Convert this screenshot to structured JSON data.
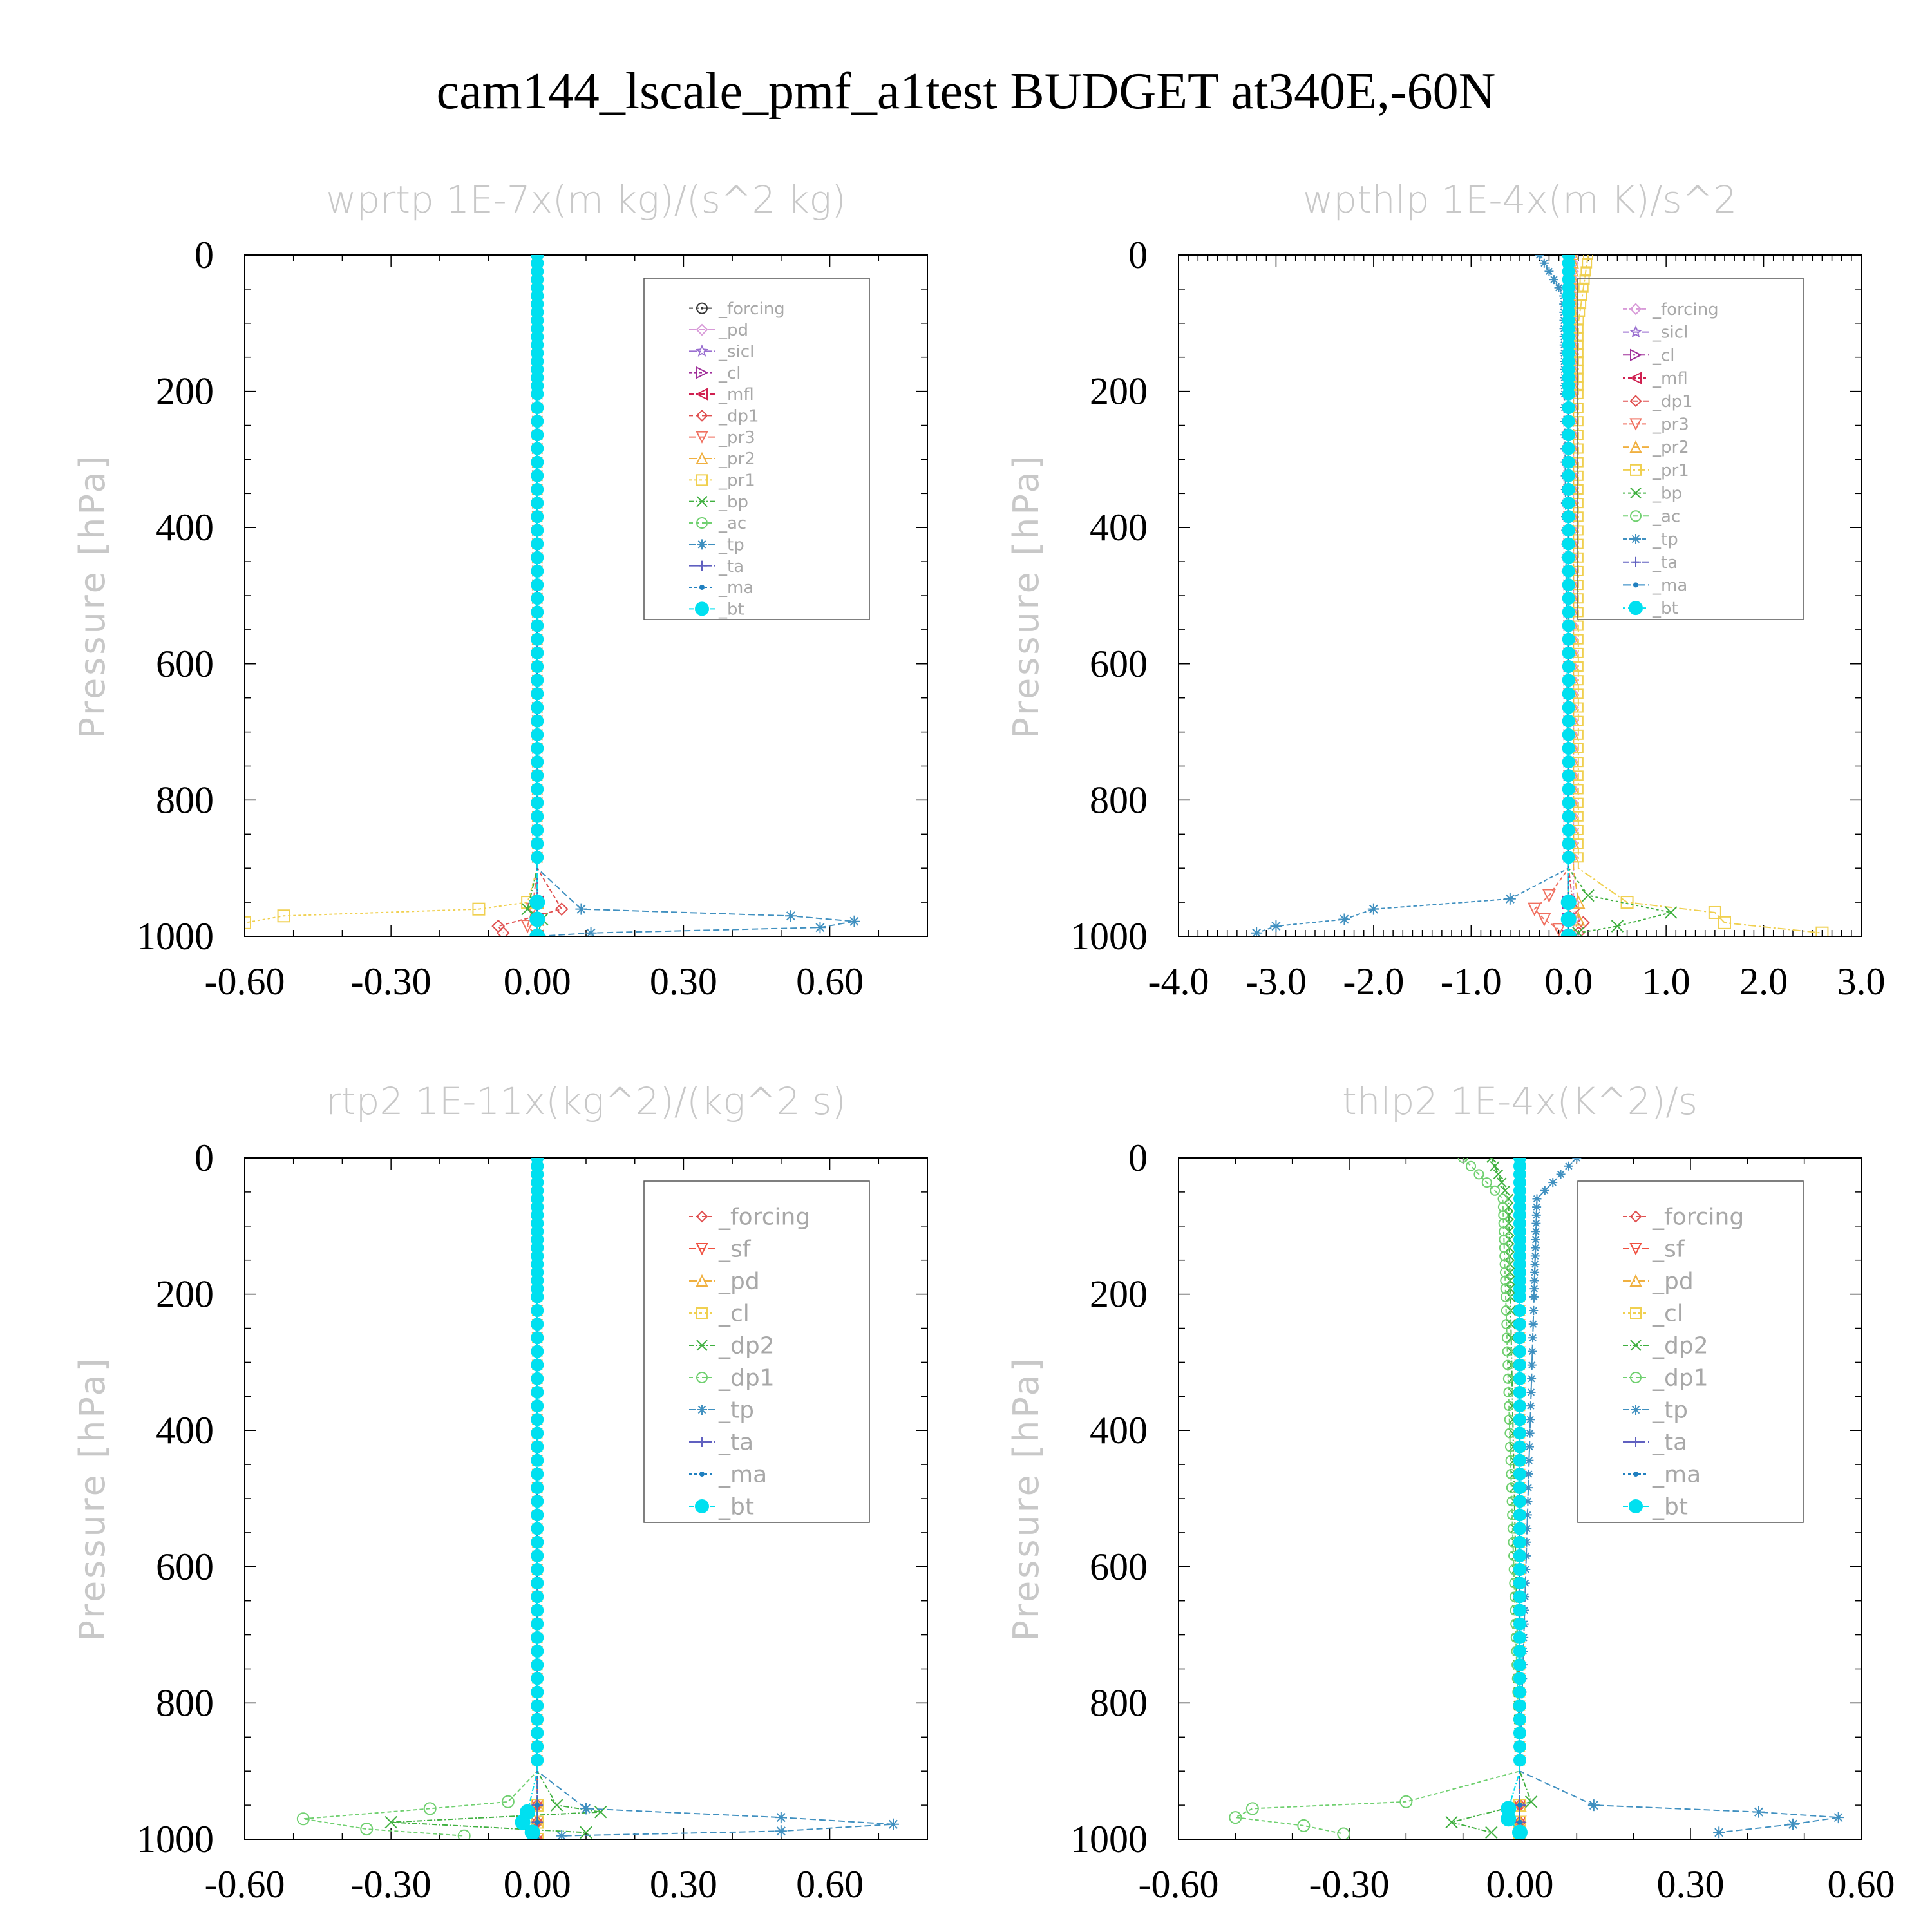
{
  "figure_title": "cam144_lscale_pmf_a1test  BUDGET at340E,-60N",
  "chart_data": [
    {
      "type": "line",
      "title": "wprtp   1E-7x(m kg)/(s^2 kg)",
      "ylabel": "Pressure [hPa]",
      "xlim": [
        -0.6,
        0.8
      ],
      "xticks": [
        "-0.60",
        "-0.30",
        "0.00",
        "0.30",
        "0.60"
      ],
      "xtick_values": [
        -0.6,
        -0.3,
        0.0,
        0.3,
        0.6
      ],
      "ylim": [
        1000,
        0
      ],
      "yticks": [
        "0",
        "200",
        "400",
        "600",
        "800",
        "1000"
      ],
      "legend_position": "top-right",
      "series": [
        {
          "name": "_forcing",
          "color": "#333333",
          "marker": "circle-dot",
          "x": [
            0,
            0,
            0,
            0,
            0
          ],
          "y": [
            0,
            900,
            950,
            975,
            1000
          ]
        },
        {
          "name": "_pd",
          "color": "#d89ad8",
          "marker": "diamond",
          "x": [
            0,
            0,
            0,
            0,
            0
          ],
          "y": [
            0,
            900,
            950,
            975,
            1000
          ]
        },
        {
          "name": "_sicl",
          "color": "#9a6fd0",
          "marker": "star",
          "x": [
            0,
            0,
            0,
            0,
            0
          ],
          "y": [
            0,
            900,
            950,
            975,
            1000
          ]
        },
        {
          "name": "_cl",
          "color": "#a0309a",
          "marker": "triangle-right",
          "x": [
            0,
            0,
            0,
            0,
            0
          ],
          "y": [
            0,
            900,
            950,
            975,
            1000
          ]
        },
        {
          "name": "_mfl",
          "color": "#d02050",
          "marker": "triangle-left",
          "x": [
            0,
            0,
            0,
            0,
            0
          ],
          "y": [
            0,
            900,
            950,
            975,
            1000
          ]
        },
        {
          "name": "_dp1",
          "color": "#e05050",
          "marker": "diamond",
          "x": [
            0,
            0,
            0.05,
            -0.08,
            -0.07
          ],
          "y": [
            0,
            900,
            960,
            985,
            995
          ]
        },
        {
          "name": "_pr3",
          "color": "#f07060",
          "marker": "triangle-down",
          "x": [
            0,
            0,
            -0.01,
            -0.02,
            0
          ],
          "y": [
            0,
            900,
            960,
            985,
            1000
          ]
        },
        {
          "name": "_pr2",
          "color": "#f0b040",
          "marker": "triangle-up",
          "x": [
            0,
            0,
            0,
            0,
            0
          ],
          "y": [
            0,
            900,
            950,
            975,
            1000
          ]
        },
        {
          "name": "_pr1",
          "color": "#f0d050",
          "marker": "square",
          "x": [
            0,
            0,
            -0.02,
            -0.12,
            -0.52,
            -0.6
          ],
          "y": [
            0,
            900,
            950,
            960,
            970,
            980
          ]
        },
        {
          "name": "_bp",
          "color": "#40b040",
          "marker": "x",
          "x": [
            0,
            0,
            -0.02,
            0.01,
            0
          ],
          "y": [
            0,
            900,
            960,
            975,
            1000
          ]
        },
        {
          "name": "_ac",
          "color": "#70d070",
          "marker": "circle",
          "x": [
            0,
            0,
            0,
            0,
            0
          ],
          "y": [
            0,
            900,
            950,
            975,
            1000
          ]
        },
        {
          "name": "_tp",
          "color": "#4090c0",
          "marker": "asterisk",
          "x": [
            0,
            0,
            0.09,
            0.52,
            0.65,
            0.58,
            0.11,
            0
          ],
          "y": [
            0,
            900,
            960,
            970,
            978,
            987,
            995,
            1000
          ]
        },
        {
          "name": "_ta",
          "color": "#6060c0",
          "marker": "plus",
          "x": [
            0,
            0,
            0,
            0,
            0
          ],
          "y": [
            0,
            900,
            950,
            975,
            1000
          ]
        },
        {
          "name": "_ma",
          "color": "#2080c0",
          "marker": "dot",
          "x": [
            0,
            0,
            0,
            0,
            0
          ],
          "y": [
            0,
            900,
            950,
            975,
            1000
          ]
        },
        {
          "name": "_bt",
          "color": "#00e0f0",
          "marker": "filled-circle",
          "x": [
            0,
            0,
            0,
            0,
            0
          ],
          "y": [
            0,
            900,
            950,
            975,
            1000
          ]
        }
      ]
    },
    {
      "type": "line",
      "title": "wpthlp   1E-4x(m K)/s^2",
      "ylabel": "Pressure [hPa]",
      "xlim": [
        -4.0,
        3.0
      ],
      "xticks": [
        "-4.0",
        "-3.0",
        "-2.0",
        "-1.0",
        "0.0",
        "1.0",
        "2.0",
        "3.0"
      ],
      "xtick_values": [
        -4.0,
        -3.0,
        -2.0,
        -1.0,
        0.0,
        1.0,
        2.0,
        3.0
      ],
      "ylim": [
        1000,
        0
      ],
      "yticks": [
        "0",
        "200",
        "400",
        "600",
        "800",
        "1000"
      ],
      "legend_position": "top-right",
      "series": [
        {
          "name": "_forcing",
          "color": "#d89ad8",
          "marker": "diamond",
          "x": [
            0.05,
            0.05,
            0.05,
            0.05,
            0.05
          ],
          "y": [
            0,
            900,
            950,
            975,
            1000
          ]
        },
        {
          "name": "_sicl",
          "color": "#9a6fd0",
          "marker": "star",
          "x": [
            0,
            0,
            0,
            0,
            0
          ],
          "y": [
            0,
            900,
            950,
            975,
            1000
          ]
        },
        {
          "name": "_cl",
          "color": "#a0309a",
          "marker": "triangle-right",
          "x": [
            0,
            0,
            0,
            0,
            0
          ],
          "y": [
            0,
            900,
            950,
            975,
            1000
          ]
        },
        {
          "name": "_mfl",
          "color": "#d02050",
          "marker": "triangle-left",
          "x": [
            0,
            0,
            0,
            0,
            0
          ],
          "y": [
            0,
            900,
            950,
            975,
            1000
          ]
        },
        {
          "name": "_dp1",
          "color": "#e05050",
          "marker": "diamond",
          "x": [
            0,
            0,
            0.05,
            0.15,
            0.1
          ],
          "y": [
            0,
            900,
            960,
            980,
            995
          ]
        },
        {
          "name": "_pr3",
          "color": "#f07060",
          "marker": "triangle-down",
          "x": [
            0,
            0,
            -0.2,
            -0.35,
            -0.25,
            -0.1
          ],
          "y": [
            0,
            900,
            940,
            960,
            975,
            990
          ]
        },
        {
          "name": "_pr2",
          "color": "#f0b040",
          "marker": "triangle-up",
          "x": [
            0.05,
            0.05,
            0.1,
            0.1,
            0.05
          ],
          "y": [
            0,
            900,
            950,
            975,
            1000
          ]
        },
        {
          "name": "_pr1",
          "color": "#f0d050",
          "marker": "square",
          "x": [
            0.2,
            0.1,
            0.1,
            0.6,
            1.5,
            1.6,
            2.6
          ],
          "y": [
            0,
            100,
            900,
            950,
            965,
            980,
            995
          ]
        },
        {
          "name": "_bp",
          "color": "#40b040",
          "marker": "x",
          "x": [
            0,
            0,
            0.2,
            1.05,
            0.5,
            0.1
          ],
          "y": [
            0,
            900,
            940,
            965,
            985,
            995
          ]
        },
        {
          "name": "_ac",
          "color": "#70d070",
          "marker": "circle",
          "x": [
            0,
            0,
            0,
            0,
            0
          ],
          "y": [
            0,
            900,
            950,
            975,
            1000
          ]
        },
        {
          "name": "_tp",
          "color": "#4090c0",
          "marker": "asterisk",
          "x": [
            -0.3,
            -0.05,
            0,
            -0.6,
            -2.0,
            -2.3,
            -3.0,
            -3.2
          ],
          "y": [
            0,
            60,
            900,
            945,
            960,
            975,
            985,
            995
          ]
        },
        {
          "name": "_ta",
          "color": "#6060c0",
          "marker": "plus",
          "x": [
            0,
            0,
            0,
            0,
            0
          ],
          "y": [
            0,
            900,
            950,
            975,
            1000
          ]
        },
        {
          "name": "_ma",
          "color": "#2080c0",
          "marker": "dot",
          "x": [
            0,
            0,
            0,
            0,
            0
          ],
          "y": [
            0,
            900,
            950,
            975,
            1000
          ]
        },
        {
          "name": "_bt",
          "color": "#00e0f0",
          "marker": "filled-circle",
          "x": [
            0,
            0,
            0,
            0,
            0
          ],
          "y": [
            0,
            900,
            950,
            975,
            1000
          ]
        }
      ]
    },
    {
      "type": "line",
      "title": "rtp2   1E-11x(kg^2)/(kg^2 s)",
      "ylabel": "Pressure [hPa]",
      "xlim": [
        -0.6,
        0.8
      ],
      "xticks": [
        "-0.60",
        "-0.30",
        "0.00",
        "0.30",
        "0.60"
      ],
      "xtick_values": [
        -0.6,
        -0.3,
        0.0,
        0.3,
        0.6
      ],
      "ylim": [
        1000,
        0
      ],
      "yticks": [
        "0",
        "200",
        "400",
        "600",
        "800",
        "1000"
      ],
      "legend_position": "top-right",
      "series": [
        {
          "name": "_forcing",
          "color": "#e05050",
          "marker": "diamond",
          "x": [
            0,
            0,
            0,
            0,
            0
          ],
          "y": [
            0,
            900,
            950,
            975,
            1000
          ]
        },
        {
          "name": "_sf",
          "color": "#f05040",
          "marker": "triangle-down",
          "x": [
            0,
            0,
            0,
            0,
            0
          ],
          "y": [
            0,
            900,
            950,
            975,
            1000
          ]
        },
        {
          "name": "_pd",
          "color": "#f0b040",
          "marker": "triangle-up",
          "x": [
            0,
            0,
            0,
            0,
            0
          ],
          "y": [
            0,
            900,
            950,
            975,
            1000
          ]
        },
        {
          "name": "_cl",
          "color": "#f0d050",
          "marker": "square",
          "x": [
            0,
            0,
            0,
            0,
            0
          ],
          "y": [
            0,
            900,
            950,
            975,
            1000
          ]
        },
        {
          "name": "_dp2",
          "color": "#40b040",
          "marker": "x",
          "x": [
            0,
            0,
            0.04,
            0.13,
            -0.3,
            0.1
          ],
          "y": [
            0,
            900,
            950,
            960,
            975,
            990
          ]
        },
        {
          "name": "_dp1",
          "color": "#70d070",
          "marker": "circle",
          "x": [
            0,
            0,
            -0.06,
            -0.22,
            -0.48,
            -0.35,
            -0.15
          ],
          "y": [
            0,
            900,
            945,
            955,
            970,
            985,
            995
          ]
        },
        {
          "name": "_tp",
          "color": "#4090c0",
          "marker": "asterisk",
          "x": [
            0,
            0,
            0.1,
            0.5,
            0.73,
            0.5,
            0.05
          ],
          "y": [
            0,
            900,
            955,
            968,
            978,
            988,
            995
          ]
        },
        {
          "name": "_ta",
          "color": "#6060c0",
          "marker": "plus",
          "x": [
            0,
            0,
            0,
            0,
            0
          ],
          "y": [
            0,
            900,
            950,
            975,
            1000
          ]
        },
        {
          "name": "_ma",
          "color": "#2080c0",
          "marker": "dot",
          "x": [
            0,
            0,
            0,
            0,
            0
          ],
          "y": [
            0,
            900,
            950,
            975,
            1000
          ]
        },
        {
          "name": "_bt",
          "color": "#00e0f0",
          "marker": "filled-circle",
          "x": [
            0,
            0,
            -0.02,
            -0.03,
            -0.01
          ],
          "y": [
            0,
            900,
            960,
            975,
            990
          ]
        }
      ]
    },
    {
      "type": "line",
      "title": "thlp2   1E-4x(K^2)/s",
      "ylabel": "Pressure [hPa]",
      "xlim": [
        -0.6,
        0.6
      ],
      "xticks": [
        "-0.60",
        "-0.30",
        "0.00",
        "0.30",
        "0.60"
      ],
      "xtick_values": [
        -0.6,
        -0.3,
        0.0,
        0.3,
        0.6
      ],
      "ylim": [
        1000,
        0
      ],
      "yticks": [
        "0",
        "200",
        "400",
        "600",
        "800",
        "1000"
      ],
      "legend_position": "top-right",
      "series": [
        {
          "name": "_forcing",
          "color": "#e05050",
          "marker": "diamond",
          "x": [
            0,
            0,
            0,
            0,
            0
          ],
          "y": [
            0,
            900,
            950,
            975,
            1000
          ]
        },
        {
          "name": "_sf",
          "color": "#f05040",
          "marker": "triangle-down",
          "x": [
            0,
            0,
            0,
            0,
            0
          ],
          "y": [
            0,
            900,
            950,
            975,
            1000
          ]
        },
        {
          "name": "_pd",
          "color": "#f0b040",
          "marker": "triangle-up",
          "x": [
            0,
            0,
            0,
            0,
            0
          ],
          "y": [
            0,
            900,
            950,
            975,
            1000
          ]
        },
        {
          "name": "_cl",
          "color": "#f0d050",
          "marker": "square",
          "x": [
            0,
            0,
            0,
            0,
            0
          ],
          "y": [
            0,
            900,
            950,
            975,
            1000
          ]
        },
        {
          "name": "_dp2",
          "color": "#40b040",
          "marker": "x",
          "x": [
            -0.05,
            -0.02,
            0,
            0.02,
            -0.12,
            -0.05
          ],
          "y": [
            0,
            60,
            900,
            945,
            975,
            990
          ]
        },
        {
          "name": "_dp1",
          "color": "#70d070",
          "marker": "circle",
          "x": [
            -0.1,
            -0.03,
            0,
            -0.2,
            -0.47,
            -0.5,
            -0.38,
            -0.31
          ],
          "y": [
            0,
            60,
            900,
            945,
            955,
            968,
            980,
            992
          ]
        },
        {
          "name": "_tp",
          "color": "#4090c0",
          "marker": "asterisk",
          "x": [
            0.1,
            0.03,
            0,
            0.13,
            0.42,
            0.56,
            0.48,
            0.35
          ],
          "y": [
            0,
            60,
            900,
            950,
            960,
            968,
            978,
            990
          ]
        },
        {
          "name": "_ta",
          "color": "#6060c0",
          "marker": "plus",
          "x": [
            0,
            0,
            0,
            0,
            0
          ],
          "y": [
            0,
            900,
            950,
            975,
            1000
          ]
        },
        {
          "name": "_ma",
          "color": "#2080c0",
          "marker": "dot",
          "x": [
            0,
            0,
            0,
            0,
            0
          ],
          "y": [
            0,
            900,
            950,
            975,
            1000
          ]
        },
        {
          "name": "_bt",
          "color": "#00e0f0",
          "marker": "filled-circle",
          "x": [
            0,
            0,
            -0.02,
            -0.02,
            0
          ],
          "y": [
            0,
            900,
            955,
            970,
            990
          ]
        }
      ]
    }
  ]
}
